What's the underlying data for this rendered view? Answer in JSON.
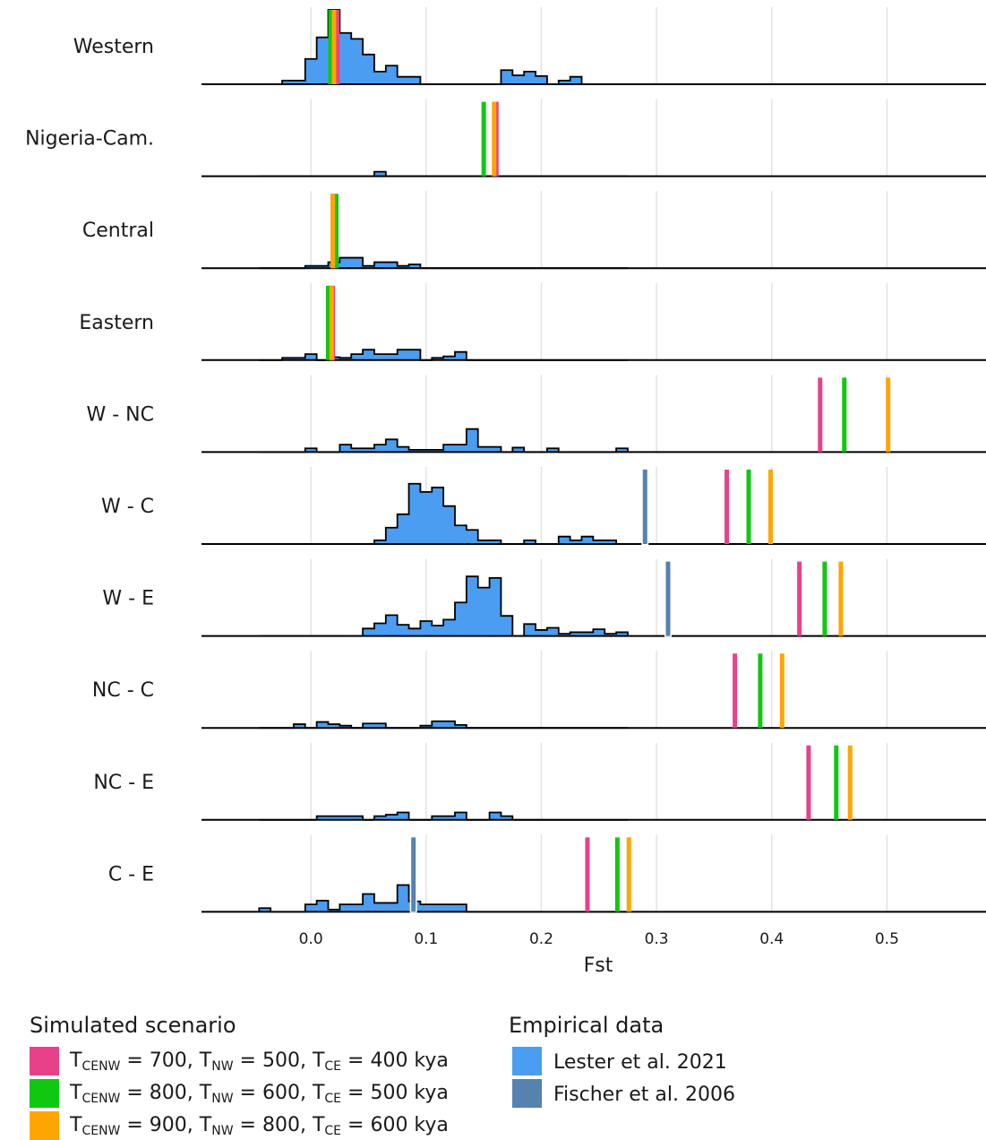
{
  "chart_data": {
    "type": "ridgeline",
    "xlabel": "Fst",
    "xlim": [
      -0.095,
      0.586
    ],
    "xticks": [
      {
        "value": 0,
        "label": "0.0"
      },
      0.1,
      0.2,
      0.3,
      0.4,
      0.5
    ],
    "ylim": [
      0,
      10
    ],
    "grid": true,
    "rows": [
      "Western",
      "Nigeria-Cam.",
      "Central",
      "Eastern",
      "W - NC",
      "W - C",
      "W - E",
      "NC - C",
      "NC - E",
      "C - E"
    ],
    "bins": [
      -0.045,
      -0.035,
      -0.025,
      -0.015,
      -0.005,
      0.005,
      0.015,
      0.025,
      0.035,
      0.045,
      0.055,
      0.065,
      0.075,
      0.085,
      0.095,
      0.105,
      0.115,
      0.125,
      0.135,
      0.145,
      0.155,
      0.165,
      0.175,
      0.185,
      0.195,
      0.205,
      0.215,
      0.225,
      0.235,
      0.245,
      0.255,
      0.265,
      0.275
    ],
    "empirical": {
      "title": "Empirical data",
      "series": [
        {
          "name": "Lester et al. 2021",
          "color": "#4a9df0",
          "counts": [
            [
              0,
              0,
              0.5,
              0.5,
              3.4,
              6.3,
              10,
              6.9,
              6.1,
              4,
              1.7,
              2.5,
              1,
              1,
              0,
              0,
              0,
              0,
              0,
              0,
              0,
              1.9,
              1.2,
              1.7,
              1.1,
              0,
              0.5,
              1,
              0,
              0,
              0,
              0
            ],
            [
              0,
              0,
              0,
              0,
              0,
              0,
              0,
              0,
              0,
              0,
              0.6,
              0,
              0,
              0,
              0,
              0,
              0,
              0,
              0,
              0,
              0,
              0,
              0,
              0,
              0,
              0,
              0,
              0,
              0,
              0,
              0,
              0
            ],
            [
              0,
              0,
              0,
              0,
              0.3,
              0.3,
              0.8,
              1.4,
              1.4,
              0.3,
              0.8,
              0.8,
              0.3,
              0.5,
              0,
              0,
              0,
              0,
              0,
              0,
              0,
              0,
              0,
              0,
              0,
              0,
              0,
              0,
              0,
              0,
              0,
              0
            ],
            [
              0,
              0,
              0.3,
              0.3,
              0.8,
              0,
              0.4,
              0.3,
              0.8,
              1.4,
              0.8,
              0.8,
              1.4,
              1.4,
              0,
              0.3,
              0.5,
              1.1,
              0,
              0,
              0,
              0,
              0,
              0,
              0,
              0,
              0,
              0,
              0,
              0,
              0,
              0
            ],
            [
              0,
              0,
              0,
              0,
              0.5,
              0,
              0,
              1,
              0.5,
              0.5,
              1,
              1.7,
              0.7,
              0.3,
              0.3,
              0.3,
              1,
              1,
              3.1,
              0.7,
              0.7,
              0,
              0.6,
              0,
              0,
              0.5,
              0,
              0,
              0,
              0,
              0,
              0.5
            ],
            [
              0,
              0,
              0,
              0,
              0,
              0,
              0,
              0,
              0,
              0,
              0.5,
              2.2,
              4,
              8.1,
              7,
              7.6,
              5.1,
              2.5,
              1.9,
              0.5,
              0.5,
              0,
              0,
              0.5,
              0,
              0,
              1,
              0.5,
              1,
              0.5,
              0.5,
              0
            ],
            [
              0,
              0,
              0,
              0,
              0,
              0,
              0,
              0,
              0,
              1,
              1.7,
              2.8,
              1.5,
              1,
              2,
              1.4,
              2.2,
              4.5,
              8,
              6.5,
              7.8,
              2.7,
              0,
              1.6,
              0.8,
              1.1,
              0.3,
              0.5,
              0.5,
              0.9,
              0.3,
              0.5
            ],
            [
              0,
              0,
              0,
              0.5,
              0,
              0.8,
              0.5,
              0.3,
              0,
              0.6,
              0.6,
              0,
              0,
              0,
              0.3,
              0.9,
              0.9,
              0.4,
              0,
              0,
              0,
              0,
              0,
              0,
              0,
              0,
              0,
              0,
              0,
              0,
              0,
              0
            ],
            [
              0,
              0,
              0,
              0,
              0,
              0.5,
              0.5,
              0.5,
              0.5,
              0,
              0.5,
              0.7,
              1,
              0,
              0,
              0.5,
              0.5,
              1,
              0,
              0,
              1,
              0.5,
              0,
              0,
              0,
              0,
              0,
              0,
              0,
              0,
              0,
              0
            ],
            [
              0.5,
              0,
              0,
              0,
              1,
              1.5,
              0.3,
              1,
              1,
              2.4,
              1.2,
              1.2,
              3.6,
              1.4,
              1,
              1,
              1,
              1,
              0,
              0,
              0,
              0,
              0,
              0,
              0,
              0,
              0,
              0,
              0,
              0,
              0,
              0
            ]
          ]
        },
        {
          "name": "Fischer et al. 2006",
          "color": "#5682b0",
          "values": [
            null,
            null,
            null,
            null,
            null,
            0.29,
            0.31,
            null,
            null,
            0.089
          ]
        }
      ]
    },
    "simulated": {
      "title": "Simulated scenario",
      "series": [
        {
          "name_parts": [
            "T",
            "CENW",
            " = 700, T",
            "NW",
            " = 500, T",
            "CE",
            " = 400 kya"
          ],
          "color": "#e8418a",
          "values": [
            0.023,
            0.161,
            0.019,
            0.019,
            0.442,
            0.361,
            0.424,
            0.368,
            0.432,
            0.24
          ]
        },
        {
          "name_parts": [
            "T",
            "CENW",
            " = 800, T",
            "NW",
            " = 600, T",
            "CE",
            " = 500 kya"
          ],
          "color": "#10c810",
          "values": [
            0.017,
            0.15,
            0.022,
            0.015,
            0.463,
            0.38,
            0.446,
            0.39,
            0.456,
            0.266
          ]
        },
        {
          "name_parts": [
            "T",
            "CENW",
            " = 900, T",
            "NW",
            " = 800, T",
            "CE",
            " = 600 kya"
          ],
          "color": "#ffa500",
          "values": [
            0.02,
            0.159,
            0.019,
            0.018,
            0.501,
            0.399,
            0.46,
            0.409,
            0.468,
            0.276
          ]
        }
      ]
    }
  }
}
